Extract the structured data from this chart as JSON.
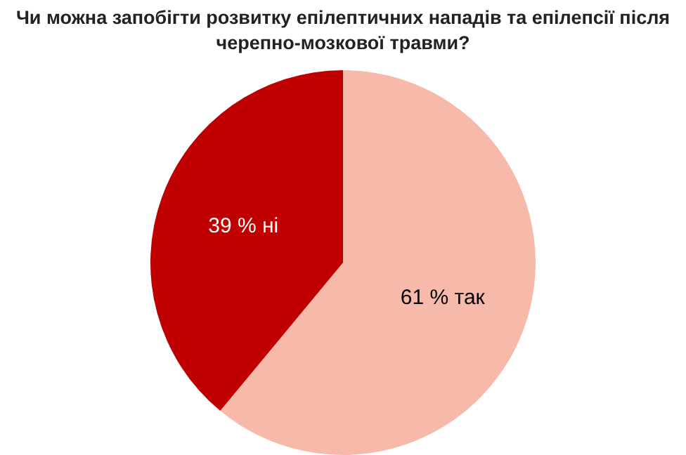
{
  "chart_data": {
    "type": "pie",
    "title": "Чи можна запобігти розвитку епілептичних нападів та епілепсії після черепно-мозкової травми?",
    "categories": [
      "61 % так",
      "39 % ні"
    ],
    "values": [
      61,
      39
    ],
    "colors": [
      "#f7b9a9",
      "#c00000"
    ],
    "legend": false
  }
}
